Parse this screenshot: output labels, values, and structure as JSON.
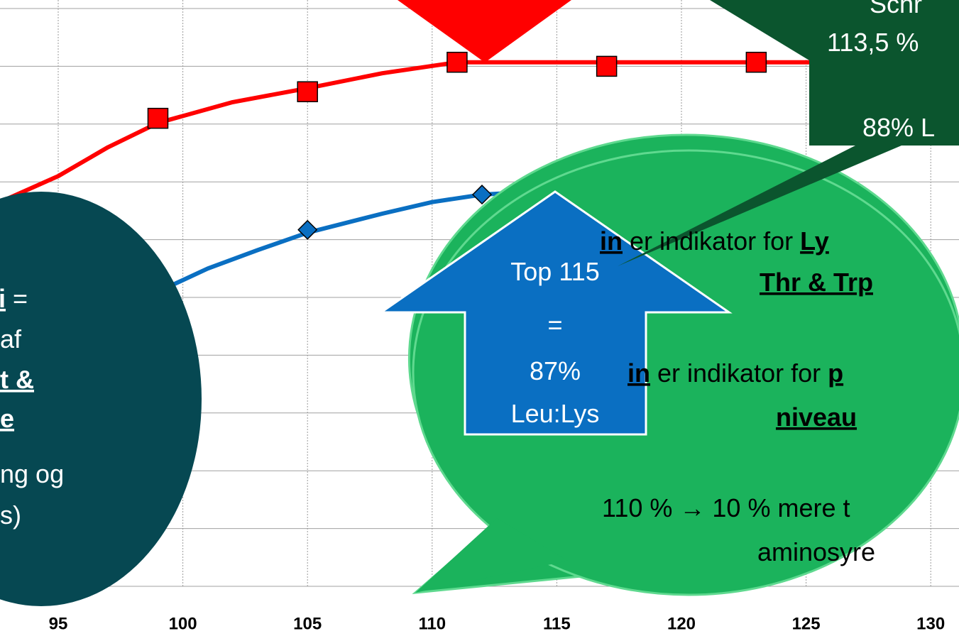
{
  "chart_data": {
    "type": "line",
    "xticks": [
      95,
      100,
      105,
      110,
      115,
      120,
      125,
      130
    ],
    "xlim": [
      92.66,
      131.13
    ],
    "ylim": [
      0,
      10
    ],
    "yticks": [
      0,
      1,
      2,
      3,
      4,
      5,
      6,
      7,
      8,
      9,
      10
    ],
    "grid": true,
    "series": [
      {
        "color": "#ff0000",
        "marker": "none",
        "x": [
          92.66,
          95,
          97,
          99,
          102,
          105,
          108,
          111,
          117,
          123,
          131.13
        ],
        "values": [
          6.65,
          7.1,
          7.6,
          8.02,
          8.38,
          8.62,
          8.88,
          9.07,
          9.07,
          9.07,
          9.07
        ]
      },
      {
        "color": "#ff0000",
        "marker": "square",
        "x": [
          99,
          105,
          111,
          117,
          123
        ],
        "values": [
          8.1,
          8.56,
          9.07,
          9.0,
          9.07
        ]
      },
      {
        "color": "#0a6fc2",
        "marker": "none",
        "x": [
          99,
          101,
          103,
          105,
          108,
          110,
          112,
          115,
          117
        ],
        "values": [
          5.1,
          5.5,
          5.82,
          6.12,
          6.45,
          6.65,
          6.78,
          6.85,
          6.85
        ]
      },
      {
        "color": "#0a6fc2",
        "marker": "diamond",
        "x": [
          105,
          112
        ],
        "values": [
          6.17,
          6.78
        ]
      }
    ]
  },
  "callouts": [
    {
      "color": "#064852",
      "text_color": "#ffffff",
      "lines": [
        [
          {
            "text": "i",
            "bold": true,
            "underline": true
          },
          {
            "text": " ="
          }
        ],
        [
          {
            "text": "af"
          }
        ],
        [
          {
            "text": "t &",
            "bold": true,
            "underline": true
          }
        ],
        [
          {
            "text": "e",
            "bold": true,
            "underline": true
          }
        ],
        [
          {
            "text": "ng og"
          }
        ],
        [
          {
            "text": "s)"
          }
        ]
      ]
    },
    {
      "color": "#1bb35c",
      "text_color": "#000000",
      "lines": [
        [
          {
            "text": "in",
            "bold": true,
            "underline": true
          },
          {
            "text": " er indikator for "
          },
          {
            "text": "Ly",
            "bold": true,
            "underline": true
          }
        ],
        [
          {
            "text": "Thr & Trp",
            "bold": true,
            "underline": true
          }
        ],
        [
          {
            "text": "in",
            "bold": true,
            "underline": true
          },
          {
            "text": " er indikator for "
          },
          {
            "text": "p",
            "bold": true,
            "underline": true
          }
        ],
        [
          {
            "text": "niveau",
            "bold": true,
            "underline": true
          }
        ],
        [
          {
            "text": "110 % → 10 % mere t"
          }
        ],
        [
          {
            "text": "aminosyre"
          }
        ]
      ]
    },
    {
      "color": "#0a6fc2",
      "text_color": "#ffffff",
      "lines": [
        [
          {
            "text": "Top 115"
          }
        ],
        [
          {
            "text": "="
          }
        ],
        [
          {
            "text": "87%"
          }
        ],
        [
          {
            "text": "Leu:Lys"
          }
        ]
      ]
    },
    {
      "color": "#0b552e",
      "text_color": "#ffffff",
      "lines": [
        [
          {
            "text": "Schr"
          }
        ],
        [
          {
            "text": "113,5 %"
          }
        ],
        [
          {
            "text": "88% L"
          }
        ]
      ]
    }
  ]
}
